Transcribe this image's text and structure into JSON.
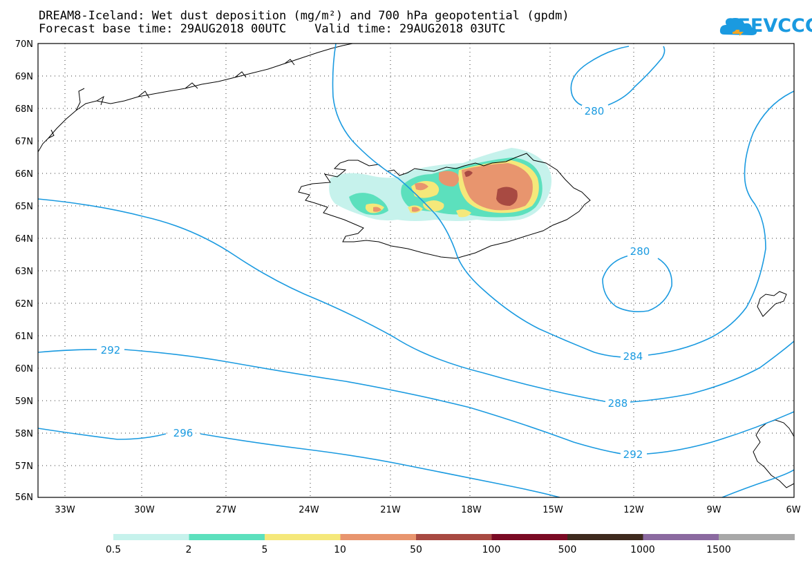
{
  "title": {
    "line1": "DREAM8-Iceland: Wet dust deposition (mg/m²) and 700 hPa geopotential (gpdm)",
    "line2": "Forecast base time: 29AUG2018 00UTC    Valid time: 29AUG2018 03UTC"
  },
  "brand": {
    "name": "SEEVCCC",
    "icon": "cloud-logo-icon",
    "color": "#1a9ae0"
  },
  "axes": {
    "lat_labels": [
      "70N",
      "69N",
      "68N",
      "67N",
      "66N",
      "65N",
      "64N",
      "63N",
      "62N",
      "61N",
      "60N",
      "59N",
      "58N",
      "57N",
      "56N"
    ],
    "lon_labels": [
      "33W",
      "30W",
      "27W",
      "24W",
      "21W",
      "18W",
      "15W",
      "12W",
      "9W",
      "6W"
    ]
  },
  "contours": {
    "color": "#1a9ae0",
    "labels": [
      "280",
      "280",
      "284",
      "288",
      "292",
      "292",
      "296"
    ]
  },
  "legend": {
    "labels": [
      "0.5",
      "2",
      "5",
      "10",
      "50",
      "100",
      "500",
      "1000",
      "1500"
    ],
    "colors": [
      "#c6f2ec",
      "#5ce0bd",
      "#f5e87a",
      "#e8956e",
      "#a84a42",
      "#7a0a24",
      "#3e2a1e",
      "#8b6aa0",
      "#a8a8a8"
    ]
  }
}
